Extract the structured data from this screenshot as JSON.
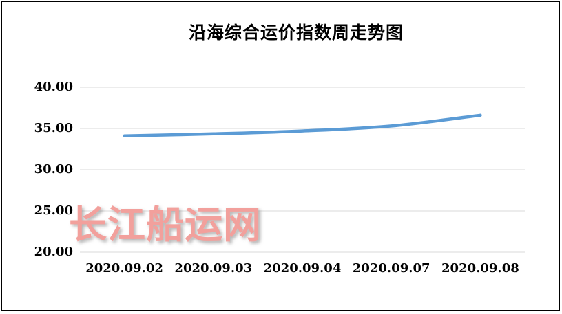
{
  "title": "沿海综合运价指数周走势图",
  "watermark": {
    "text": "长江船运网",
    "color": "#f2a09c"
  },
  "colors": {
    "line": "#5b9bd5",
    "gridline": "#d9d9d9",
    "frame_border": "#000000",
    "text": "#000000"
  },
  "chart_data": {
    "type": "line",
    "title": "沿海综合运价指数周走势图",
    "categories": [
      "2020.09.02",
      "2020.09.03",
      "2020.09.04",
      "2020.09.07",
      "2020.09.08"
    ],
    "values": [
      34.1,
      34.35,
      34.7,
      35.3,
      36.6
    ],
    "xlabel": "",
    "ylabel": "",
    "ylim": [
      20,
      40
    ],
    "ytick_interval": 5,
    "ytick_labels": [
      "20.00",
      "25.00",
      "30.00",
      "35.00",
      "40.00"
    ],
    "grid": true,
    "legend_position": "none"
  }
}
